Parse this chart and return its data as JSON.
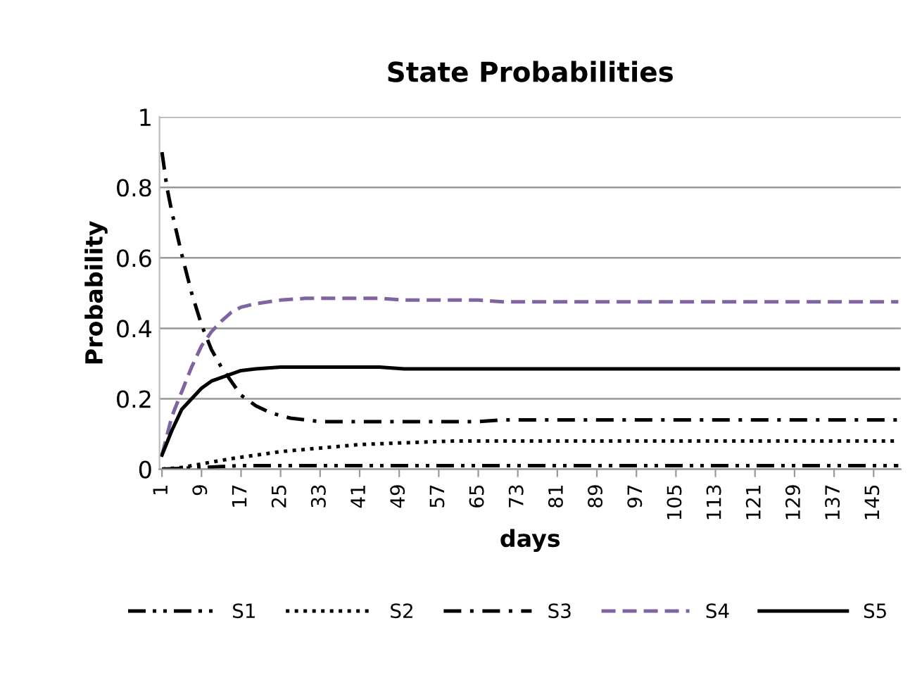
{
  "chart_data": {
    "type": "line",
    "title": "State Probabilities",
    "xlabel": "days",
    "ylabel": "Probability",
    "xlim": [
      0.5,
      150.5
    ],
    "xticks": [
      1,
      9,
      17,
      25,
      33,
      41,
      49,
      57,
      65,
      73,
      81,
      89,
      97,
      105,
      113,
      121,
      129,
      137,
      145
    ],
    "ylim": [
      0,
      1
    ],
    "yticks": [
      0,
      0.2,
      0.4,
      0.6,
      0.8,
      1
    ],
    "grid": "y",
    "legend": "bottom",
    "marker": "none",
    "series": [
      {
        "name": "S1",
        "color": "#000000",
        "line_style": "dashdotdot",
        "x": [
          1,
          9,
          17,
          25,
          150
        ],
        "values": [
          0,
          0.005,
          0.01,
          0.01,
          0.01
        ]
      },
      {
        "name": "S2",
        "color": "#000000",
        "line_style": "dotted",
        "x": [
          1,
          5,
          9,
          15,
          20,
          25,
          33,
          41,
          50,
          60,
          150
        ],
        "values": [
          0,
          0.005,
          0.015,
          0.03,
          0.04,
          0.05,
          0.06,
          0.07,
          0.075,
          0.08,
          0.08
        ]
      },
      {
        "name": "S3",
        "color": "#000000",
        "line_style": "dashdot",
        "x": [
          1,
          2,
          3,
          5,
          7,
          9,
          11,
          13,
          15,
          17,
          20,
          23,
          27,
          33,
          65,
          70,
          150
        ],
        "values": [
          0.9,
          0.8,
          0.73,
          0.61,
          0.5,
          0.41,
          0.34,
          0.29,
          0.25,
          0.21,
          0.18,
          0.16,
          0.145,
          0.135,
          0.135,
          0.14,
          0.14
        ]
      },
      {
        "name": "S4",
        "color": "#8064a2",
        "line_style": "dashed",
        "x": [
          1,
          3,
          5,
          7,
          9,
          11,
          13,
          15,
          17,
          20,
          25,
          30,
          45,
          50,
          65,
          70,
          150
        ],
        "values": [
          0.04,
          0.15,
          0.22,
          0.29,
          0.35,
          0.39,
          0.42,
          0.445,
          0.46,
          0.47,
          0.48,
          0.485,
          0.485,
          0.48,
          0.48,
          0.475,
          0.475
        ]
      },
      {
        "name": "S5",
        "color": "#000000",
        "line_style": "solid",
        "x": [
          1,
          3,
          5,
          7,
          9,
          11,
          13,
          15,
          17,
          20,
          25,
          45,
          50,
          150
        ],
        "values": [
          0.04,
          0.11,
          0.17,
          0.2,
          0.23,
          0.25,
          0.26,
          0.27,
          0.28,
          0.285,
          0.29,
          0.29,
          0.285,
          0.285
        ]
      }
    ]
  }
}
